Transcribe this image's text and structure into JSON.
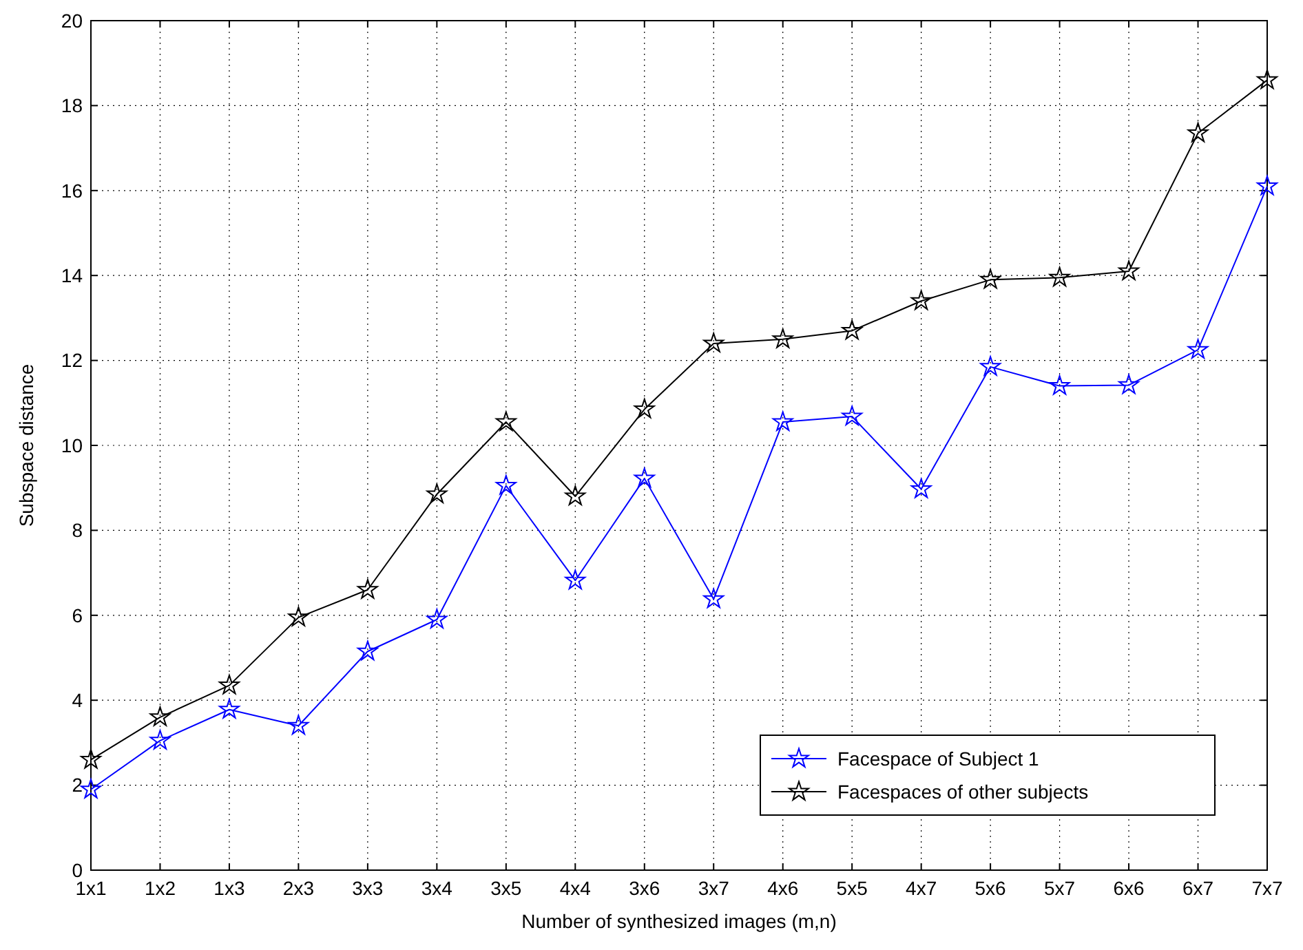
{
  "chart_data": {
    "type": "line",
    "xlabel": "Number of synthesized images (m,n)",
    "ylabel": "Subspace distance",
    "categories": [
      "1x1",
      "1x2",
      "1x3",
      "2x3",
      "3x3",
      "3x4",
      "3x5",
      "4x4",
      "3x6",
      "3x7",
      "4x6",
      "5x5",
      "4x7",
      "5x6",
      "5x7",
      "6x6",
      "6x7",
      "7x7"
    ],
    "ylim": [
      0,
      20
    ],
    "yticks": [
      0,
      2,
      4,
      6,
      8,
      10,
      12,
      14,
      16,
      18,
      20
    ],
    "grid": true,
    "legend": "bottom right",
    "marker": "star",
    "line_style": "solid",
    "series": [
      {
        "name": "Facespace of Subject 1",
        "color": "#0000ff",
        "values": [
          1.9,
          3.05,
          3.78,
          3.4,
          5.15,
          5.9,
          9.05,
          6.82,
          9.22,
          6.38,
          10.55,
          10.68,
          8.97,
          11.85,
          11.4,
          11.42,
          12.25,
          16.1
        ]
      },
      {
        "name": "Facespaces of other subjects",
        "color": "#000000",
        "values": [
          2.6,
          3.6,
          4.35,
          5.95,
          6.6,
          8.85,
          10.55,
          8.8,
          10.85,
          12.4,
          12.5,
          12.7,
          13.4,
          13.9,
          13.95,
          14.1,
          17.35,
          18.6
        ]
      }
    ]
  }
}
